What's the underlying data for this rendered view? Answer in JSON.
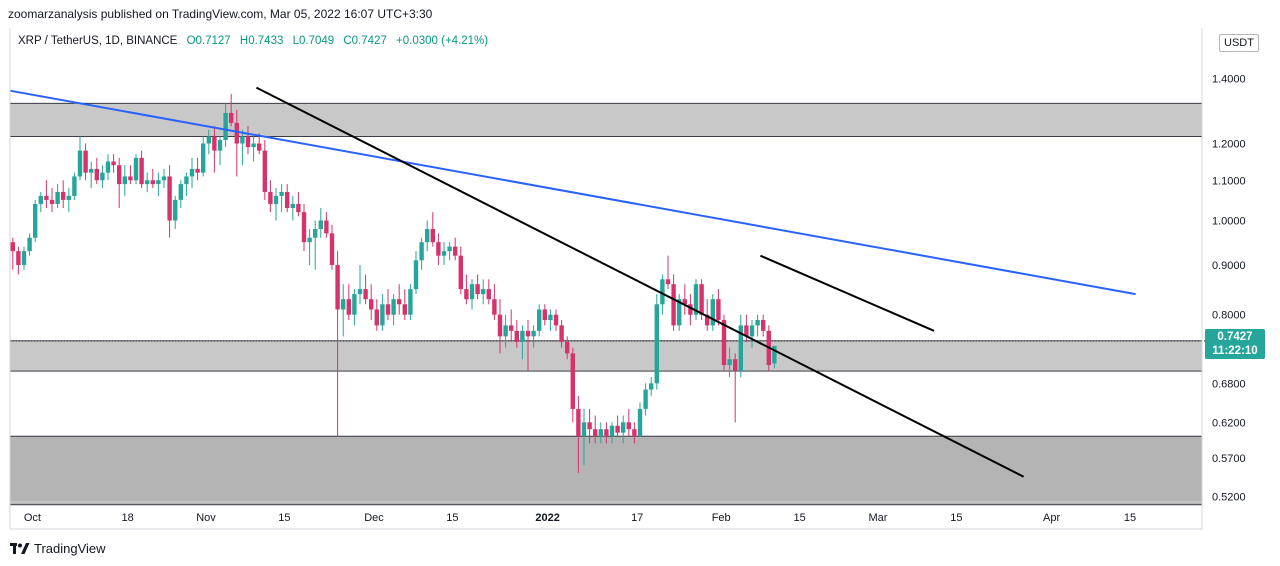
{
  "header": {
    "publisher_line": "zoomarzanalysis published on TradingView.com, Mar 05, 2022 16:07 UTC+3:30",
    "symbol": "XRP / TetherUS, 1D, BINANCE",
    "open": "O0.7127",
    "high": "H0.7433",
    "low": "L0.7049",
    "close": "C0.7427",
    "change": "+0.0300 (+4.21%)"
  },
  "currency_label": "USDT",
  "price_tag": {
    "price": "0.7427",
    "countdown": "11:22:10"
  },
  "footer": {
    "brand": "TradingView"
  },
  "colors": {
    "up": "#26a69a",
    "down": "#d6336c",
    "blue_trendline": "#2962ff",
    "black_trendline": "#000000",
    "zone": "#c8c8c8",
    "zone_dark": "#b4b4b4"
  },
  "chart_data": {
    "type": "candlestick",
    "scale": "log",
    "ylim": [
      0.5,
      1.5
    ],
    "y_ticks": [
      "1.4000",
      "1.2000",
      "1.1000",
      "1.0000",
      "0.9000",
      "0.8000",
      "0.6800",
      "0.6200",
      "0.5700",
      "0.5200"
    ],
    "x_ticks": [
      {
        "label": "Oct",
        "date": "2021-10-01"
      },
      {
        "label": "18",
        "date": "2021-10-18"
      },
      {
        "label": "Nov",
        "date": "2021-11-01"
      },
      {
        "label": "15",
        "date": "2021-11-15"
      },
      {
        "label": "Dec",
        "date": "2021-12-01"
      },
      {
        "label": "15",
        "date": "2021-12-15"
      },
      {
        "label": "2022",
        "date": "2022-01-01",
        "bold": true
      },
      {
        "label": "17",
        "date": "2022-01-17"
      },
      {
        "label": "Feb",
        "date": "2022-02-01"
      },
      {
        "label": "15",
        "date": "2022-02-15"
      },
      {
        "label": "Mar",
        "date": "2022-03-01"
      },
      {
        "label": "15",
        "date": "2022-03-15"
      },
      {
        "label": "Apr",
        "date": "2022-04-01"
      },
      {
        "label": "15",
        "date": "2022-04-15"
      }
    ],
    "xlim": [
      "2021-09-27",
      "2022-04-16"
    ],
    "zones": [
      {
        "low": 1.22,
        "high": 1.32,
        "shade": "light"
      },
      {
        "low": 0.7,
        "high": 0.752,
        "shade": "light"
      },
      {
        "low": 0.51,
        "high": 0.6,
        "shade": "dark"
      }
    ],
    "horizontal_lines": [
      0.752
    ],
    "trendlines": [
      {
        "color": "blue",
        "from": {
          "date": "2021-09-27",
          "price": 1.36
        },
        "to": {
          "date": "2022-04-16",
          "price": 0.84
        }
      },
      {
        "color": "black",
        "from": {
          "date": "2021-11-10",
          "price": 1.37
        },
        "to": {
          "date": "2022-03-27",
          "price": 0.545
        }
      },
      {
        "color": "black",
        "from": {
          "date": "2022-02-08",
          "price": 0.92
        },
        "to": {
          "date": "2022-03-11",
          "price": 0.77
        }
      }
    ],
    "candles": {
      "start": "2021-09-27",
      "ohlc": [
        [
          0.95,
          0.96,
          0.89,
          0.93
        ],
        [
          0.93,
          0.94,
          0.88,
          0.9
        ],
        [
          0.9,
          0.94,
          0.89,
          0.93
        ],
        [
          0.93,
          0.97,
          0.92,
          0.96
        ],
        [
          0.96,
          1.05,
          0.95,
          1.04
        ],
        [
          1.04,
          1.07,
          1.02,
          1.06
        ],
        [
          1.06,
          1.1,
          1.03,
          1.05
        ],
        [
          1.05,
          1.08,
          1.02,
          1.04
        ],
        [
          1.04,
          1.09,
          1.03,
          1.07
        ],
        [
          1.07,
          1.1,
          1.03,
          1.05
        ],
        [
          1.05,
          1.08,
          1.02,
          1.06
        ],
        [
          1.06,
          1.12,
          1.05,
          1.11
        ],
        [
          1.11,
          1.22,
          1.1,
          1.18
        ],
        [
          1.18,
          1.2,
          1.1,
          1.12
        ],
        [
          1.12,
          1.15,
          1.08,
          1.13
        ],
        [
          1.13,
          1.16,
          1.09,
          1.1
        ],
        [
          1.1,
          1.14,
          1.08,
          1.12
        ],
        [
          1.12,
          1.17,
          1.1,
          1.15
        ],
        [
          1.15,
          1.17,
          1.12,
          1.14
        ],
        [
          1.14,
          1.16,
          1.03,
          1.09
        ],
        [
          1.09,
          1.14,
          1.06,
          1.11
        ],
        [
          1.11,
          1.14,
          1.09,
          1.1
        ],
        [
          1.1,
          1.17,
          1.09,
          1.16
        ],
        [
          1.16,
          1.18,
          1.08,
          1.09
        ],
        [
          1.09,
          1.12,
          1.07,
          1.1
        ],
        [
          1.1,
          1.13,
          1.08,
          1.09
        ],
        [
          1.09,
          1.12,
          1.06,
          1.1
        ],
        [
          1.1,
          1.13,
          1.08,
          1.11
        ],
        [
          1.11,
          1.14,
          0.96,
          1.0
        ],
        [
          1.0,
          1.06,
          0.98,
          1.05
        ],
        [
          1.05,
          1.1,
          1.03,
          1.09
        ],
        [
          1.09,
          1.12,
          1.06,
          1.11
        ],
        [
          1.11,
          1.16,
          1.08,
          1.13
        ],
        [
          1.13,
          1.16,
          1.1,
          1.12
        ],
        [
          1.12,
          1.22,
          1.11,
          1.2
        ],
        [
          1.2,
          1.24,
          1.17,
          1.22
        ],
        [
          1.22,
          1.25,
          1.12,
          1.18
        ],
        [
          1.18,
          1.22,
          1.14,
          1.21
        ],
        [
          1.21,
          1.32,
          1.19,
          1.29
        ],
        [
          1.29,
          1.35,
          1.25,
          1.26
        ],
        [
          1.26,
          1.3,
          1.11,
          1.2
        ],
        [
          1.2,
          1.24,
          1.14,
          1.22
        ],
        [
          1.22,
          1.25,
          1.17,
          1.19
        ],
        [
          1.19,
          1.22,
          1.15,
          1.2
        ],
        [
          1.2,
          1.23,
          1.17,
          1.18
        ],
        [
          1.18,
          1.21,
          1.05,
          1.07
        ],
        [
          1.07,
          1.1,
          1.02,
          1.04
        ],
        [
          1.04,
          1.08,
          1.0,
          1.06
        ],
        [
          1.06,
          1.09,
          1.02,
          1.07
        ],
        [
          1.07,
          1.09,
          1.02,
          1.03
        ],
        [
          1.03,
          1.06,
          1.0,
          1.04
        ],
        [
          1.04,
          1.07,
          1.01,
          1.02
        ],
        [
          1.02,
          1.04,
          0.93,
          0.95
        ],
        [
          0.95,
          0.98,
          0.9,
          0.96
        ],
        [
          0.96,
          1.0,
          0.89,
          0.98
        ],
        [
          0.98,
          1.03,
          0.96,
          1.0
        ],
        [
          1.0,
          1.02,
          0.96,
          0.97
        ],
        [
          0.97,
          0.99,
          0.89,
          0.9
        ],
        [
          0.9,
          0.93,
          0.6,
          0.81
        ],
        [
          0.81,
          0.86,
          0.76,
          0.83
        ],
        [
          0.83,
          0.86,
          0.79,
          0.8
        ],
        [
          0.8,
          0.85,
          0.78,
          0.84
        ],
        [
          0.84,
          0.9,
          0.82,
          0.85
        ],
        [
          0.85,
          0.88,
          0.82,
          0.83
        ],
        [
          0.83,
          0.86,
          0.79,
          0.81
        ],
        [
          0.81,
          0.83,
          0.77,
          0.78
        ],
        [
          0.78,
          0.84,
          0.77,
          0.82
        ],
        [
          0.82,
          0.85,
          0.79,
          0.8
        ],
        [
          0.8,
          0.84,
          0.78,
          0.83
        ],
        [
          0.83,
          0.86,
          0.8,
          0.82
        ],
        [
          0.82,
          0.85,
          0.79,
          0.8
        ],
        [
          0.8,
          0.86,
          0.79,
          0.85
        ],
        [
          0.85,
          0.93,
          0.84,
          0.91
        ],
        [
          0.91,
          0.96,
          0.89,
          0.95
        ],
        [
          0.95,
          1.0,
          0.93,
          0.98
        ],
        [
          0.98,
          1.02,
          0.94,
          0.95
        ],
        [
          0.95,
          0.97,
          0.9,
          0.92
        ],
        [
          0.92,
          0.95,
          0.9,
          0.93
        ],
        [
          0.93,
          0.95,
          0.91,
          0.94
        ],
        [
          0.94,
          0.96,
          0.91,
          0.92
        ],
        [
          0.92,
          0.94,
          0.84,
          0.85
        ],
        [
          0.85,
          0.88,
          0.82,
          0.83
        ],
        [
          0.83,
          0.87,
          0.81,
          0.86
        ],
        [
          0.86,
          0.88,
          0.83,
          0.84
        ],
        [
          0.84,
          0.87,
          0.82,
          0.85
        ],
        [
          0.85,
          0.87,
          0.82,
          0.83
        ],
        [
          0.83,
          0.86,
          0.79,
          0.8
        ],
        [
          0.8,
          0.83,
          0.73,
          0.76
        ],
        [
          0.76,
          0.8,
          0.74,
          0.78
        ],
        [
          0.78,
          0.81,
          0.75,
          0.77
        ],
        [
          0.77,
          0.79,
          0.74,
          0.75
        ],
        [
          0.75,
          0.78,
          0.72,
          0.77
        ],
        [
          0.77,
          0.79,
          0.7,
          0.76
        ],
        [
          0.76,
          0.78,
          0.74,
          0.77
        ],
        [
          0.77,
          0.82,
          0.76,
          0.81
        ],
        [
          0.81,
          0.82,
          0.78,
          0.79
        ],
        [
          0.79,
          0.81,
          0.77,
          0.8
        ],
        [
          0.8,
          0.81,
          0.77,
          0.78
        ],
        [
          0.78,
          0.79,
          0.74,
          0.75
        ],
        [
          0.75,
          0.76,
          0.72,
          0.73
        ],
        [
          0.73,
          0.74,
          0.62,
          0.64
        ],
        [
          0.64,
          0.66,
          0.55,
          0.6
        ],
        [
          0.6,
          0.64,
          0.56,
          0.62
        ],
        [
          0.62,
          0.64,
          0.59,
          0.61
        ],
        [
          0.61,
          0.63,
          0.59,
          0.6
        ],
        [
          0.6,
          0.62,
          0.59,
          0.61
        ],
        [
          0.61,
          0.62,
          0.59,
          0.6
        ],
        [
          0.6,
          0.62,
          0.59,
          0.615
        ],
        [
          0.615,
          0.63,
          0.6,
          0.605
        ],
        [
          0.605,
          0.63,
          0.59,
          0.62
        ],
        [
          0.62,
          0.64,
          0.6,
          0.61
        ],
        [
          0.61,
          0.62,
          0.59,
          0.6
        ],
        [
          0.6,
          0.65,
          0.6,
          0.64
        ],
        [
          0.64,
          0.68,
          0.63,
          0.67
        ],
        [
          0.67,
          0.69,
          0.66,
          0.68
        ],
        [
          0.68,
          0.84,
          0.67,
          0.82
        ],
        [
          0.82,
          0.88,
          0.8,
          0.87
        ],
        [
          0.87,
          0.92,
          0.85,
          0.86
        ],
        [
          0.86,
          0.88,
          0.77,
          0.78
        ],
        [
          0.78,
          0.84,
          0.77,
          0.83
        ],
        [
          0.83,
          0.86,
          0.8,
          0.82
        ],
        [
          0.82,
          0.84,
          0.78,
          0.8
        ],
        [
          0.8,
          0.87,
          0.79,
          0.86
        ],
        [
          0.86,
          0.87,
          0.79,
          0.8
        ],
        [
          0.8,
          0.83,
          0.77,
          0.78
        ],
        [
          0.78,
          0.84,
          0.77,
          0.83
        ],
        [
          0.83,
          0.85,
          0.78,
          0.79
        ],
        [
          0.79,
          0.8,
          0.7,
          0.71
        ],
        [
          0.71,
          0.74,
          0.69,
          0.72
        ],
        [
          0.72,
          0.73,
          0.62,
          0.7
        ],
        [
          0.7,
          0.8,
          0.69,
          0.78
        ],
        [
          0.78,
          0.8,
          0.75,
          0.76
        ],
        [
          0.76,
          0.79,
          0.74,
          0.78
        ],
        [
          0.78,
          0.8,
          0.76,
          0.79
        ],
        [
          0.79,
          0.8,
          0.76,
          0.77
        ],
        [
          0.77,
          0.78,
          0.7,
          0.71
        ],
        [
          0.7127,
          0.7433,
          0.7049,
          0.7427
        ]
      ]
    }
  }
}
